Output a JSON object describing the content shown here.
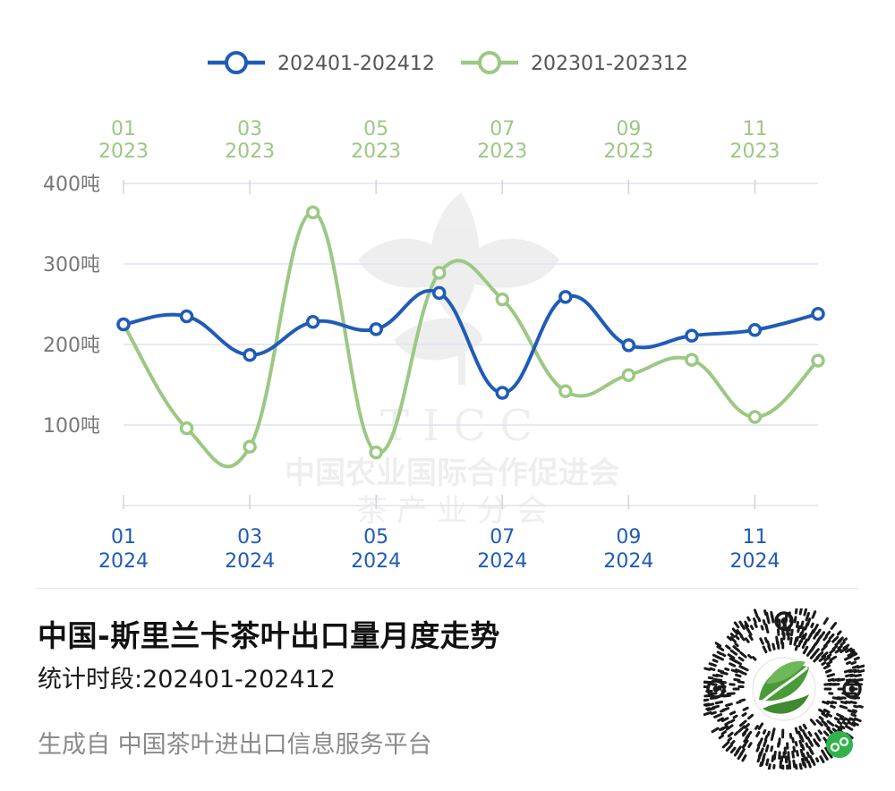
{
  "chart_data": {
    "type": "line",
    "title": "中国-斯里兰卡茶叶出口量月度走势",
    "subtitle": "统计时段:202401-202412",
    "source": "生成自 中国茶叶进出口信息服务平台",
    "x_bottom_ticks": [
      {
        "month": "01",
        "year": "2024"
      },
      {
        "month": "03",
        "year": "2024"
      },
      {
        "month": "05",
        "year": "2024"
      },
      {
        "month": "07",
        "year": "2024"
      },
      {
        "month": "09",
        "year": "2024"
      },
      {
        "month": "11",
        "year": "2024"
      }
    ],
    "x_top_ticks": [
      {
        "month": "01",
        "year": "2023"
      },
      {
        "month": "03",
        "year": "2023"
      },
      {
        "month": "05",
        "year": "2023"
      },
      {
        "month": "07",
        "year": "2023"
      },
      {
        "month": "09",
        "year": "2023"
      },
      {
        "month": "11",
        "year": "2023"
      }
    ],
    "y_ticks": [
      "100吨",
      "200吨",
      "300吨",
      "400吨"
    ],
    "y_tick_values": [
      100,
      200,
      300,
      400
    ],
    "ylim": [
      0,
      400
    ],
    "categories": [
      "01",
      "02",
      "03",
      "04",
      "05",
      "06",
      "07",
      "08",
      "09",
      "10",
      "11",
      "12"
    ],
    "series": [
      {
        "name": "202401-202412",
        "color": "#1f5bb8",
        "values": [
          225,
          235,
          187,
          228,
          219,
          264,
          140,
          259,
          199,
          211,
          218,
          238
        ]
      },
      {
        "name": "202301-202312",
        "color": "#9cc883",
        "values": [
          225,
          96,
          73,
          364,
          66,
          289,
          256,
          142,
          162,
          181,
          110,
          180
        ]
      }
    ],
    "legend_position": "top-center",
    "grid": true
  },
  "watermark": {
    "letters": "T I C C",
    "org": "中国农业国际合作促进会",
    "branch": "茶 产 业 分 会"
  },
  "icons": {
    "qr": "qr-code-icon",
    "logo": "tea-leaf-logo-icon"
  }
}
